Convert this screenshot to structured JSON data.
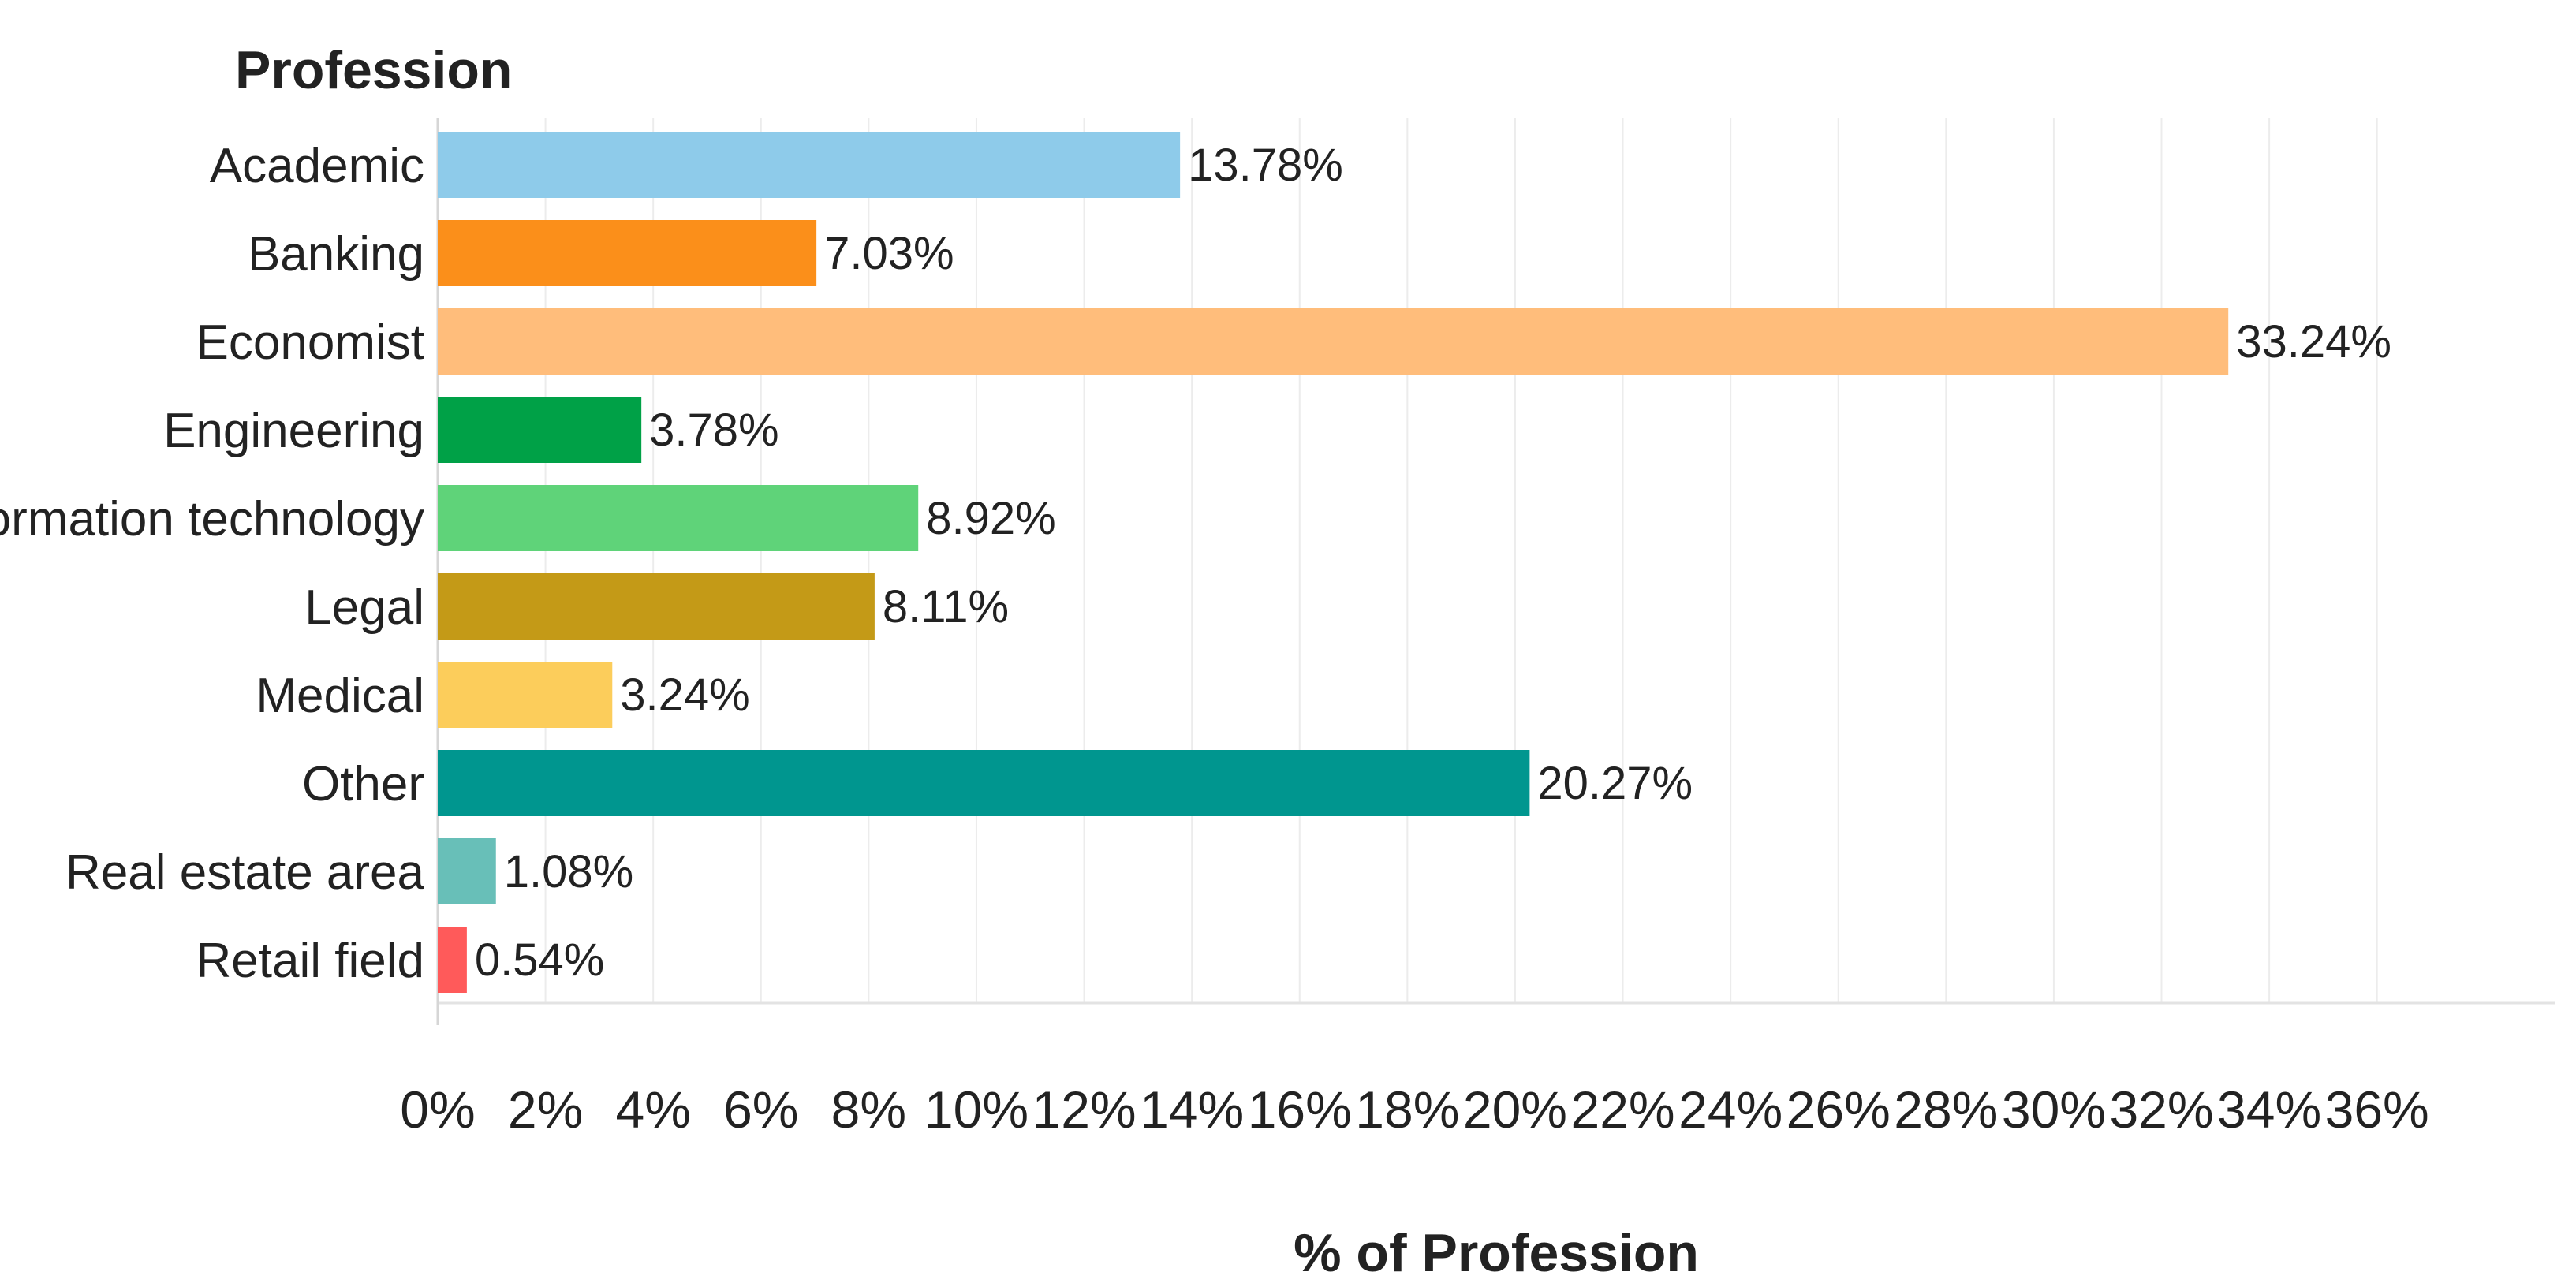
{
  "chart_data": {
    "type": "bar",
    "orientation": "horizontal",
    "header": "Profession",
    "xlabel": "% of Profession",
    "ylabel": "",
    "xlim": [
      0,
      37
    ],
    "x_ticks": [
      0,
      2,
      4,
      6,
      8,
      10,
      12,
      14,
      16,
      18,
      20,
      22,
      24,
      26,
      28,
      30,
      32,
      34,
      36
    ],
    "x_tick_labels": [
      "0%",
      "2%",
      "4%",
      "6%",
      "8%",
      "10%",
      "12%",
      "14%",
      "16%",
      "18%",
      "20%",
      "22%",
      "24%",
      "26%",
      "28%",
      "30%",
      "32%",
      "34%",
      "36%"
    ],
    "grid": true,
    "categories": [
      "Academic",
      "Banking",
      "Economist",
      "Engineering",
      "Information technology",
      "Legal",
      "Medical",
      "Other",
      "Real estate area",
      "Retail field"
    ],
    "values": [
      13.78,
      7.03,
      33.24,
      3.78,
      8.92,
      8.11,
      3.24,
      20.27,
      1.08,
      0.54
    ],
    "data_labels": [
      "13.78%",
      "7.03%",
      "33.24%",
      "3.78%",
      "8.92%",
      "8.11%",
      "3.24%",
      "20.27%",
      "1.08%",
      "0.54%"
    ],
    "colors": [
      "#8ecbea",
      "#fb8f1a",
      "#ffbd7b",
      "#00a147",
      "#5fd379",
      "#c49a17",
      "#fccd5b",
      "#00968f",
      "#68bfb8",
      "#ff5a5a"
    ]
  }
}
